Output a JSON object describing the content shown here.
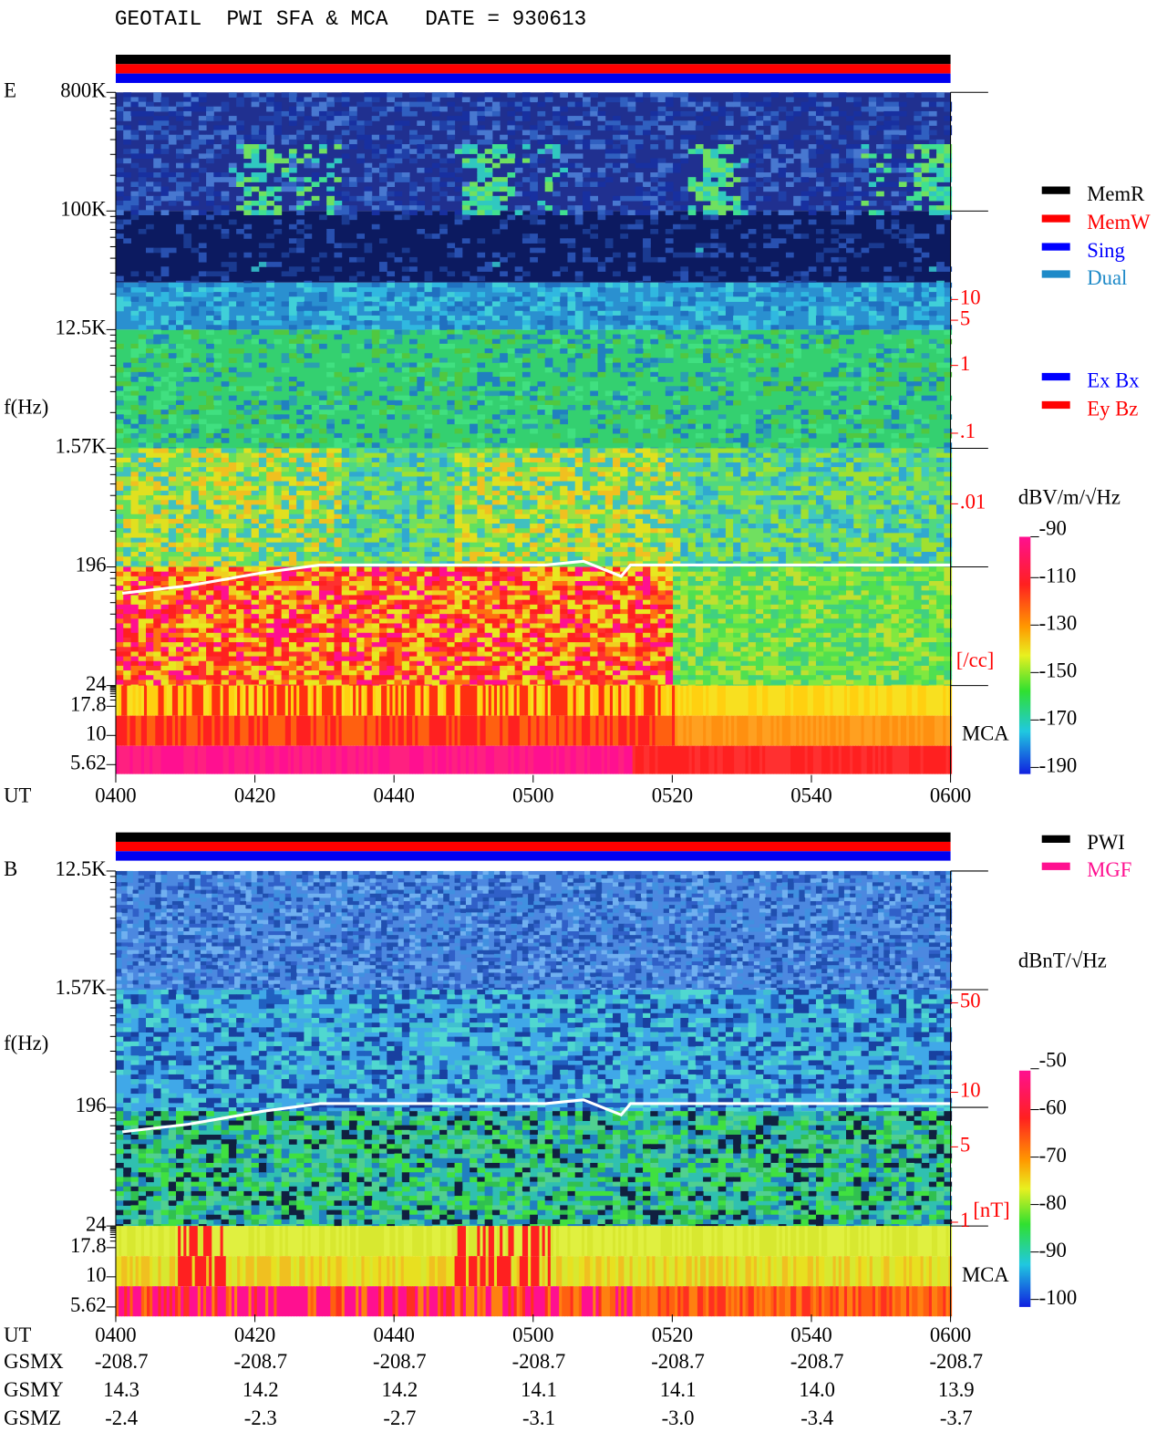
{
  "title": "GEOTAIL  PWI SFA & MCA   DATE = 930613",
  "panels": [
    {
      "component": "E",
      "freq_label": "f(Hz)",
      "freq_ticks": [
        "800K",
        "100K",
        "12.5K",
        "1.57K",
        "196",
        "24",
        "17.8",
        "10",
        "5.62"
      ],
      "time_label": "UT",
      "time_ticks": [
        "0400",
        "0420",
        "0440",
        "0500",
        "0520",
        "0540",
        "0600"
      ],
      "mca_label": "MCA",
      "scale_ticks": [
        "10",
        "5",
        "1",
        ".1",
        ".01"
      ],
      "scale_unit": "[/cc]",
      "colorbar_unit": "dBV/m/√Hz",
      "colorbar_ticks": [
        "-90",
        "-110",
        "-130",
        "-150",
        "-170",
        "-190"
      ]
    },
    {
      "component": "B",
      "freq_label": "f(Hz)",
      "freq_ticks": [
        "12.5K",
        "1.57K",
        "196",
        "24",
        "17.8",
        "10",
        "5.62"
      ],
      "time_label": "UT",
      "time_ticks": [
        "0400",
        "0420",
        "0440",
        "0500",
        "0520",
        "0540",
        "0600"
      ],
      "mca_label": "MCA",
      "scale_ticks": [
        "50",
        "10",
        "5",
        "1"
      ],
      "scale_unit": "[nT]",
      "colorbar_unit": "dBnT/√Hz",
      "colorbar_ticks": [
        "-50",
        "-60",
        "-70",
        "-80",
        "-90",
        "-100"
      ]
    }
  ],
  "mode_legend": [
    "MemR",
    "MemW",
    "Sing",
    "Dual"
  ],
  "antenna_legend": [
    "Ex Bx",
    "Ey Bz"
  ],
  "source_legend": [
    "PWI",
    "MGF"
  ],
  "orbit": [
    {
      "label": "GSMX",
      "values": [
        "-208.7",
        "-208.7",
        "-208.7",
        "-208.7",
        "-208.7",
        "-208.7",
        "-208.7"
      ]
    },
    {
      "label": "GSMY",
      "values": [
        "14.3",
        "14.2",
        "14.2",
        "14.1",
        "14.1",
        "14.0",
        "13.9"
      ]
    },
    {
      "label": "GSMZ",
      "values": [
        "-2.4",
        "-2.3",
        "-2.7",
        "-3.1",
        "-3.0",
        "-3.4",
        "-3.7"
      ]
    }
  ]
}
